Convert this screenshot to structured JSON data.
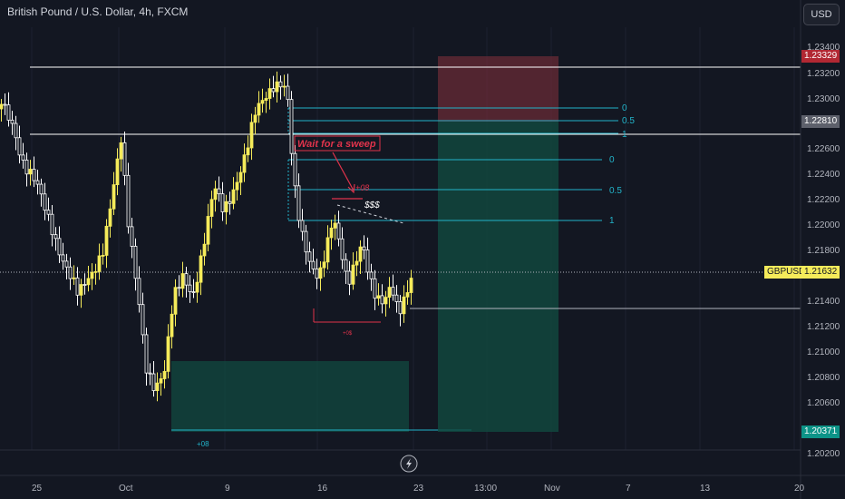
{
  "header": {
    "title": "British Pound / U.S. Dollar, 4h, FXCM",
    "currency_button": "USD"
  },
  "price_axis": {
    "ticks": [
      "1.23400",
      "1.23200",
      "1.23000",
      "1.22600",
      "1.22400",
      "1.22200",
      "1.22000",
      "1.21800",
      "1.21400",
      "1.21200",
      "1.21000",
      "1.20800",
      "1.20600",
      "1.20200"
    ]
  },
  "time_axis": {
    "ticks": [
      "25",
      "Oct",
      "9",
      "16",
      "23",
      "13:00",
      "Nov",
      "7",
      "13",
      "20"
    ]
  },
  "price_tags": {
    "stop_loss": "1.23329",
    "entry": "1.22810",
    "current_symbol": "GBPUSD",
    "current": "1.21632",
    "take_profit": "1.20371"
  },
  "fib_labels": {
    "upper": [
      "0",
      "0.5",
      "1"
    ],
    "lower": [
      "0",
      "0.5",
      "1"
    ]
  },
  "annotations": {
    "wait_note": "Wait for a sweep",
    "sweep_label": "$$$",
    "upper_small": "+08",
    "mid_small": "+0$",
    "bottom_small": "+08"
  },
  "colors": {
    "background": "#131722",
    "bull_candle": "#f5eb5a",
    "bear_candle": "#ffffff",
    "fib": "#22b3c9",
    "stop_zone": "#7d2e3a",
    "target_zone": "#124a40",
    "note": "#e0334b"
  }
}
